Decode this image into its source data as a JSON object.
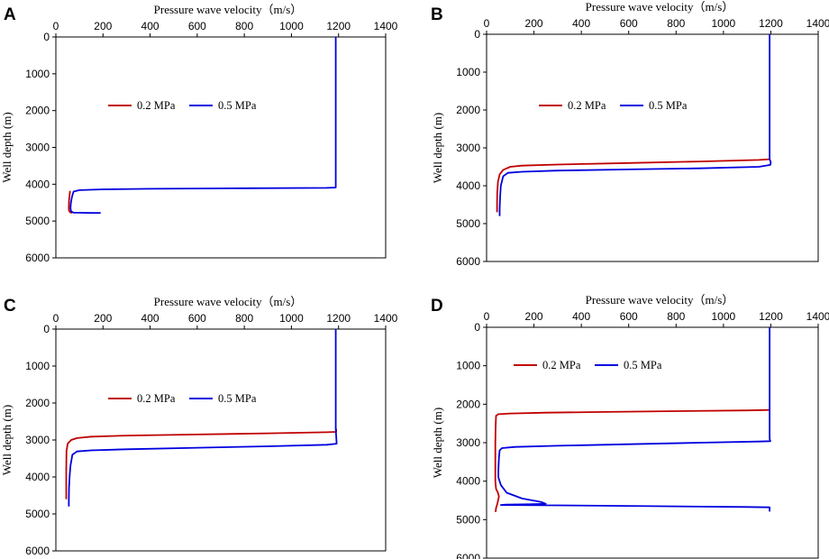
{
  "chart_data": [
    {
      "panel": "A",
      "type": "line",
      "xlabel": "Pressure wave velocity（m/s）",
      "ylabel": "Well depth (m)",
      "xlim": [
        0,
        1400
      ],
      "ylim": [
        0,
        6000
      ],
      "xticks": [
        0,
        200,
        400,
        600,
        800,
        1000,
        1200,
        1400
      ],
      "yticks": [
        0,
        1000,
        2000,
        3000,
        4000,
        5000,
        6000
      ],
      "legend": "top-left",
      "series": [
        {
          "name": "0.2 MPa",
          "color": "#c00000",
          "points": [
            [
              60,
              4180
            ],
            [
              58,
              4300
            ],
            [
              56,
              4450
            ],
            [
              55,
              4600
            ],
            [
              55,
              4700
            ],
            [
              60,
              4760
            ],
            [
              70,
              4780
            ]
          ]
        },
        {
          "name": "0.5 MPa",
          "color": "#0000e0",
          "points": [
            [
              1188,
              0
            ],
            [
              1188,
              1000
            ],
            [
              1188,
              2000
            ],
            [
              1188,
              3000
            ],
            [
              1188,
              4000
            ],
            [
              1188,
              4090
            ],
            [
              1150,
              4100
            ],
            [
              800,
              4110
            ],
            [
              400,
              4125
            ],
            [
              200,
              4140
            ],
            [
              100,
              4160
            ],
            [
              75,
              4200
            ],
            [
              68,
              4350
            ],
            [
              64,
              4500
            ],
            [
              62,
              4650
            ],
            [
              65,
              4740
            ],
            [
              75,
              4770
            ],
            [
              110,
              4775
            ],
            [
              160,
              4780
            ],
            [
              190,
              4780
            ]
          ]
        }
      ]
    },
    {
      "panel": "B",
      "type": "line",
      "xlabel": "Pressure wave velocity（m/s）",
      "ylabel": "Well depth (m)",
      "xlim": [
        0,
        1400
      ],
      "ylim": [
        0,
        6000
      ],
      "xticks": [
        0,
        200,
        400,
        600,
        800,
        1000,
        1200,
        1400
      ],
      "yticks": [
        0,
        1000,
        2000,
        3000,
        4000,
        5000,
        6000
      ],
      "legend": "top-left",
      "series": [
        {
          "name": "0.2 MPa",
          "color": "#c00000",
          "points": [
            [
              1195,
              3300
            ],
            [
              1150,
              3320
            ],
            [
              900,
              3360
            ],
            [
              600,
              3400
            ],
            [
              300,
              3440
            ],
            [
              150,
              3470
            ],
            [
              100,
              3500
            ],
            [
              70,
              3580
            ],
            [
              55,
              3700
            ],
            [
              48,
              3900
            ],
            [
              45,
              4200
            ],
            [
              44,
              4500
            ],
            [
              44,
              4700
            ]
          ]
        },
        {
          "name": "0.5 MPa",
          "color": "#0000e0",
          "points": [
            [
              1195,
              0
            ],
            [
              1195,
              1000
            ],
            [
              1195,
              2000
            ],
            [
              1195,
              3000
            ],
            [
              1195,
              3300
            ],
            [
              1200,
              3380
            ],
            [
              1198,
              3450
            ],
            [
              1150,
              3500
            ],
            [
              900,
              3540
            ],
            [
              600,
              3570
            ],
            [
              300,
              3600
            ],
            [
              150,
              3630
            ],
            [
              90,
              3660
            ],
            [
              70,
              3750
            ],
            [
              60,
              4000
            ],
            [
              57,
              4300
            ],
            [
              55,
              4600
            ],
            [
              55,
              4800
            ]
          ]
        }
      ]
    },
    {
      "panel": "C",
      "type": "line",
      "xlabel": "Pressure wave velocity（m/s）",
      "ylabel": "Well depth (m)",
      "xlim": [
        0,
        1400
      ],
      "ylim": [
        0,
        6000
      ],
      "xticks": [
        0,
        200,
        400,
        600,
        800,
        1000,
        1200,
        1400
      ],
      "yticks": [
        0,
        1000,
        2000,
        3000,
        4000,
        5000,
        6000
      ],
      "legend": "top-left",
      "series": [
        {
          "name": "0.2 MPa",
          "color": "#c00000",
          "points": [
            [
              1190,
              2700
            ],
            [
              1190,
              2780
            ],
            [
              1150,
              2790
            ],
            [
              900,
              2820
            ],
            [
              600,
              2850
            ],
            [
              300,
              2880
            ],
            [
              150,
              2910
            ],
            [
              90,
              2950
            ],
            [
              65,
              3000
            ],
            [
              50,
              3100
            ],
            [
              45,
              3300
            ],
            [
              44,
              3800
            ],
            [
              44,
              4300
            ],
            [
              44,
              4600
            ]
          ]
        },
        {
          "name": "0.5 MPa",
          "color": "#0000e0",
          "points": [
            [
              1188,
              0
            ],
            [
              1188,
              1000
            ],
            [
              1188,
              2000
            ],
            [
              1188,
              2700
            ],
            [
              1190,
              2900
            ],
            [
              1192,
              3100
            ],
            [
              1150,
              3130
            ],
            [
              900,
              3170
            ],
            [
              600,
              3210
            ],
            [
              300,
              3250
            ],
            [
              150,
              3280
            ],
            [
              90,
              3310
            ],
            [
              70,
              3400
            ],
            [
              62,
              3700
            ],
            [
              58,
              4000
            ],
            [
              56,
              4300
            ],
            [
              55,
              4600
            ],
            [
              55,
              4800
            ]
          ]
        }
      ]
    },
    {
      "panel": "D",
      "type": "line",
      "xlabel": "Pressure wave velocity（m/s）",
      "ylabel": "Well depth (m)",
      "xlim": [
        0,
        1400
      ],
      "ylim": [
        0,
        6000
      ],
      "xticks": [
        0,
        200,
        400,
        600,
        800,
        1000,
        1200,
        1400
      ],
      "yticks": [
        0,
        1000,
        2000,
        3000,
        4000,
        5000,
        6000
      ],
      "legend": "top-left",
      "series": [
        {
          "name": "0.2 MPa",
          "color": "#c00000",
          "points": [
            [
              1195,
              2150
            ],
            [
              1100,
              2160
            ],
            [
              800,
              2180
            ],
            [
              500,
              2200
            ],
            [
              250,
              2220
            ],
            [
              100,
              2240
            ],
            [
              50,
              2260
            ],
            [
              40,
              2300
            ],
            [
              38,
              2600
            ],
            [
              37,
              3000
            ],
            [
              37,
              3500
            ],
            [
              37,
              4000
            ],
            [
              40,
              4200
            ],
            [
              48,
              4300
            ],
            [
              52,
              4400
            ],
            [
              45,
              4600
            ],
            [
              40,
              4700
            ],
            [
              38,
              4800
            ]
          ]
        },
        {
          "name": "0.5 MPa",
          "color": "#0000e0",
          "points": [
            [
              1195,
              0
            ],
            [
              1195,
              1000
            ],
            [
              1195,
              2000
            ],
            [
              1195,
              2900
            ],
            [
              1198,
              2960
            ],
            [
              1150,
              2970
            ],
            [
              900,
              3000
            ],
            [
              600,
              3040
            ],
            [
              300,
              3080
            ],
            [
              120,
              3110
            ],
            [
              65,
              3140
            ],
            [
              55,
              3200
            ],
            [
              52,
              3400
            ],
            [
              50,
              3700
            ],
            [
              50,
              3900
            ],
            [
              60,
              4100
            ],
            [
              85,
              4300
            ],
            [
              150,
              4450
            ],
            [
              230,
              4540
            ],
            [
              250,
              4590
            ],
            [
              180,
              4600
            ],
            [
              80,
              4610
            ],
            [
              60,
              4620
            ],
            [
              300,
              4630
            ],
            [
              700,
              4650
            ],
            [
              1100,
              4670
            ],
            [
              1195,
              4680
            ],
            [
              1195,
              4790
            ]
          ]
        }
      ]
    }
  ]
}
